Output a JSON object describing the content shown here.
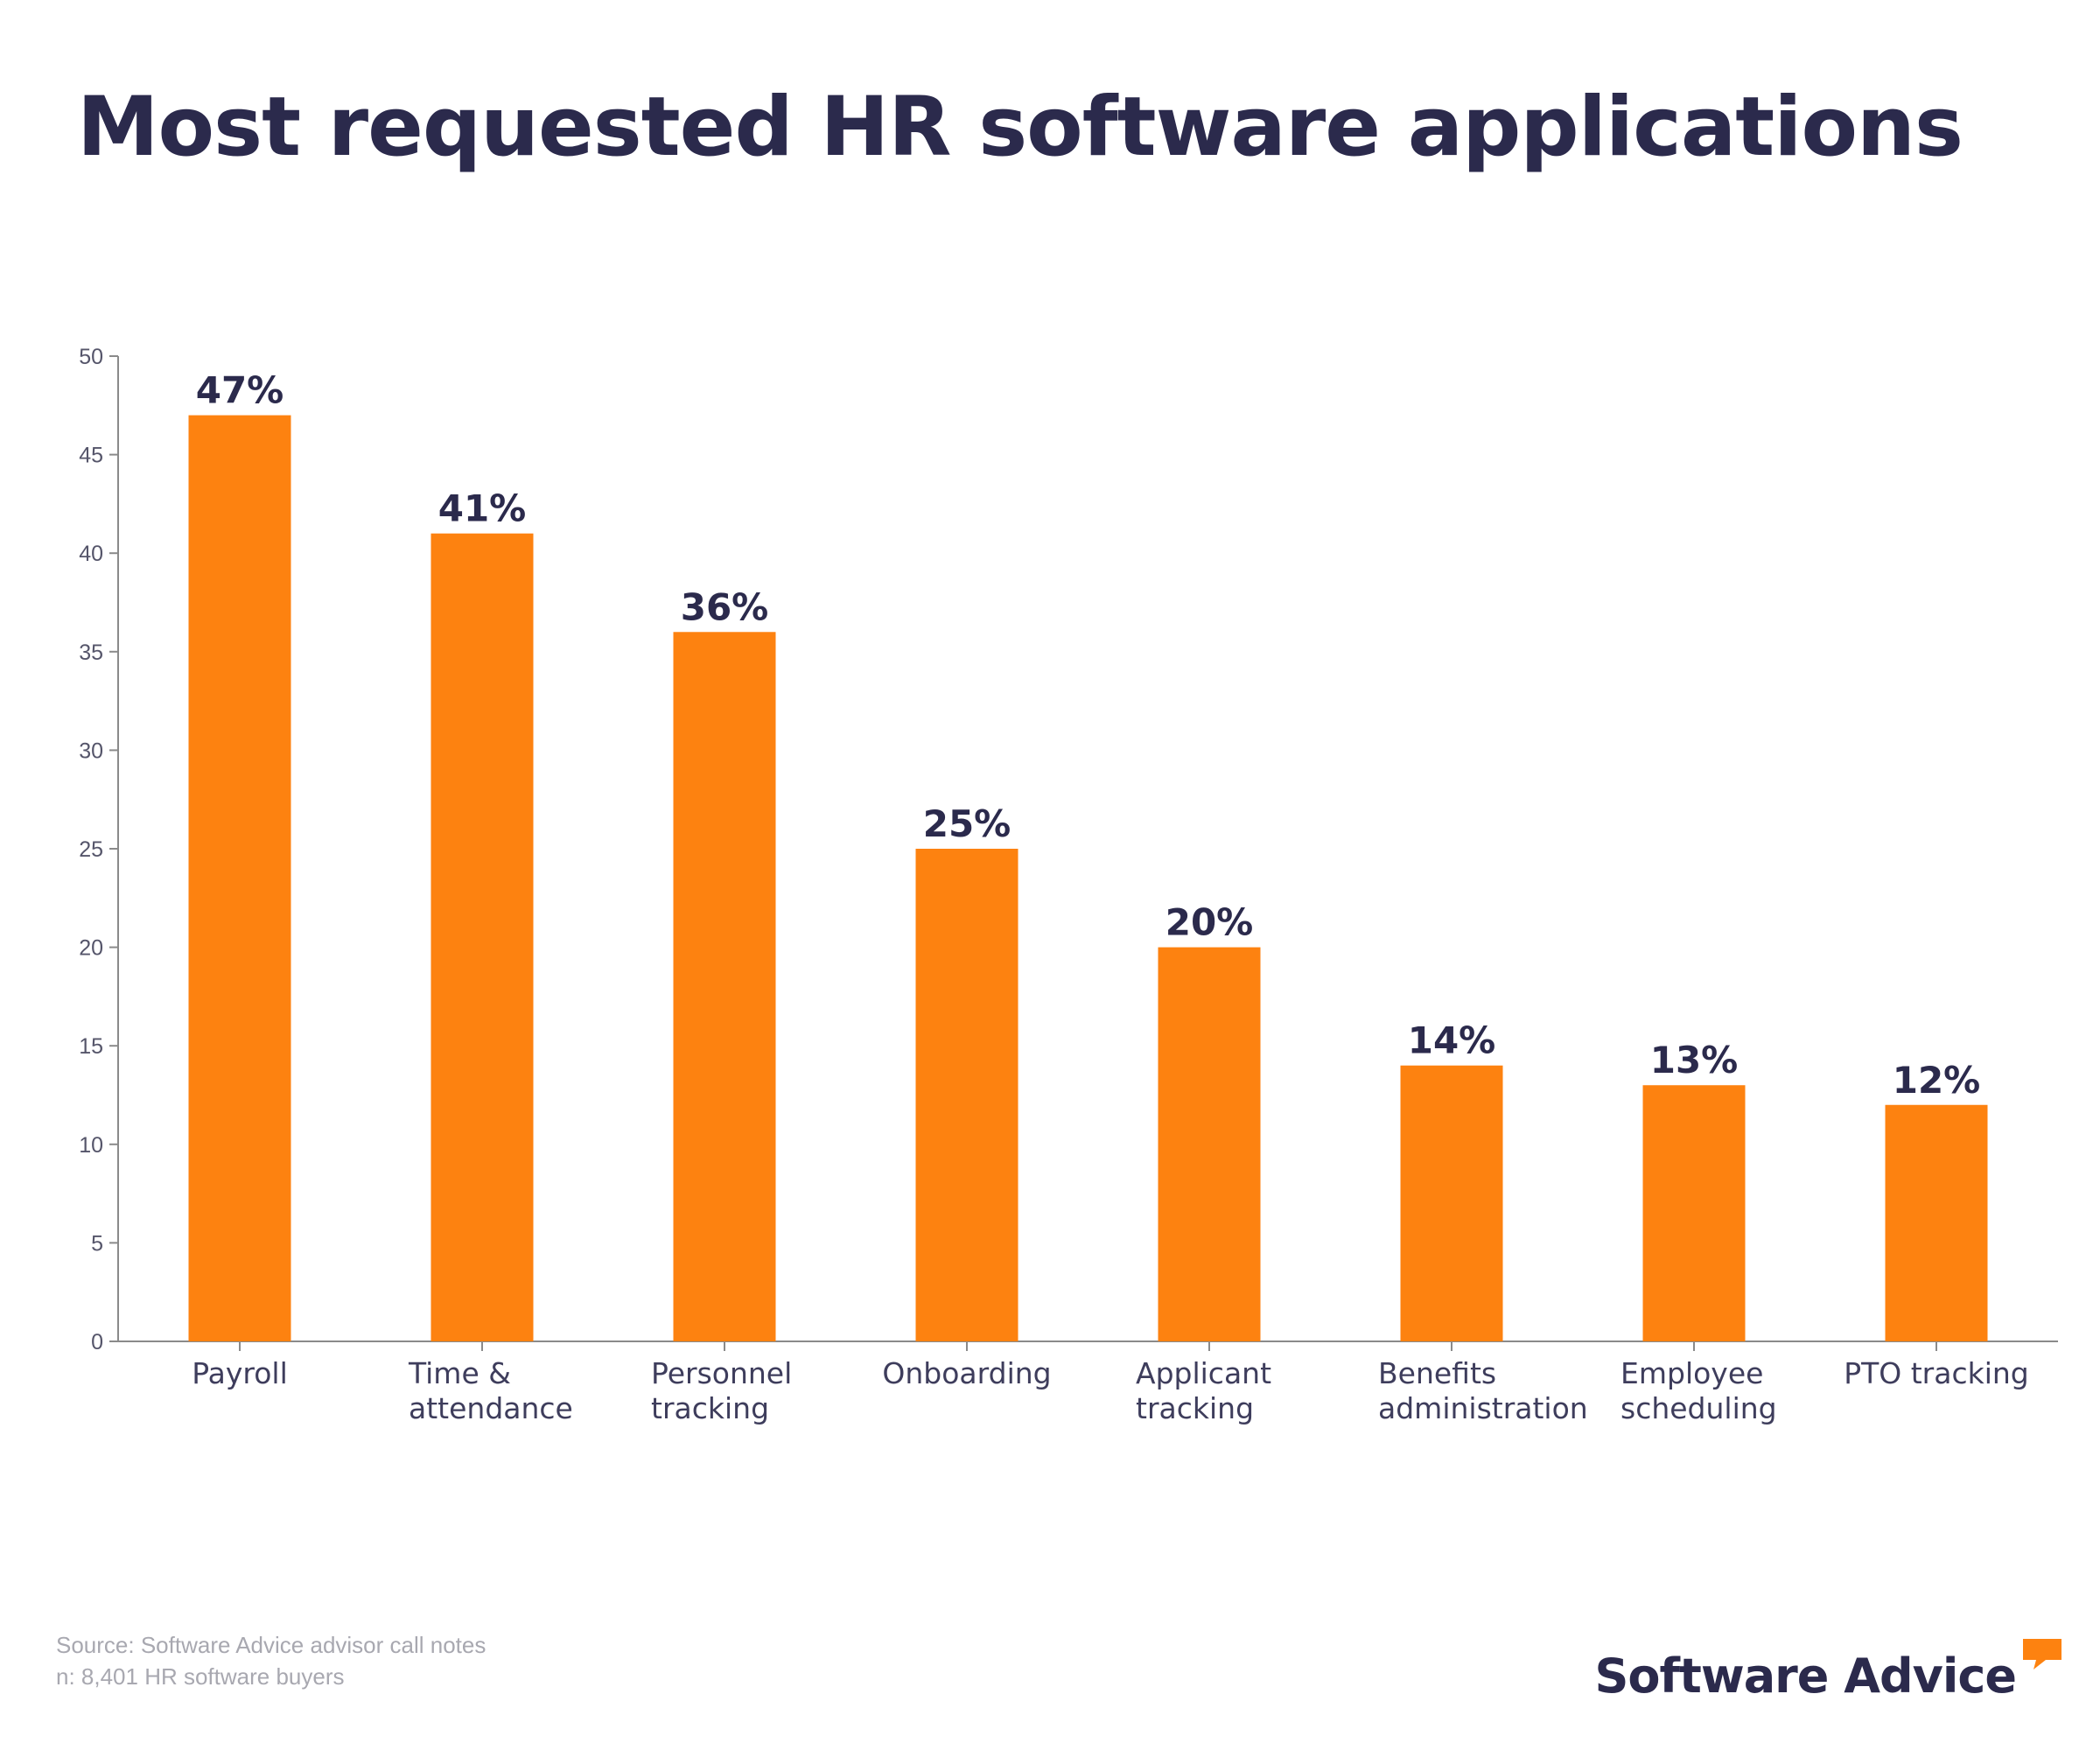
{
  "title": "Most requested HR software applications",
  "colors": {
    "bar": "#fd8210",
    "title": "#2b2a4c",
    "axis": "#8a8a8a",
    "tick_text": "#55556a",
    "category_text": "#3e3d5c",
    "value_text": "#2b2a4c",
    "footnote": "#a8a8b0",
    "brand": "#2b2a4c",
    "brand_accent": "#fd8210"
  },
  "chart_data": {
    "type": "bar",
    "categories": [
      "Payroll",
      "Time & attendance",
      "Personnel tracking",
      "Onboarding",
      "Applicant tracking",
      "Benefits administration",
      "Employee scheduling",
      "PTO tracking"
    ],
    "category_lines": [
      [
        "Payroll"
      ],
      [
        "Time &",
        "attendance"
      ],
      [
        "Personnel",
        "tracking"
      ],
      [
        "Onboarding"
      ],
      [
        "Applicant",
        "tracking"
      ],
      [
        "Benefits",
        "administration"
      ],
      [
        "Employee",
        "scheduling"
      ],
      [
        "PTO tracking"
      ]
    ],
    "values": [
      47,
      41,
      36,
      25,
      20,
      14,
      13,
      12
    ],
    "data_labels": [
      "47%",
      "41%",
      "36%",
      "25%",
      "20%",
      "14%",
      "13%",
      "12%"
    ],
    "ylim": [
      0,
      50
    ],
    "yticks": [
      0,
      5,
      10,
      15,
      20,
      25,
      30,
      35,
      40,
      45,
      50
    ],
    "xlabel": "",
    "ylabel": "",
    "grid": false,
    "legend": "none"
  },
  "footnote": {
    "source": "Source: Software Advice advisor call notes",
    "sample": "n: 8,401 HR software buyers"
  },
  "brand": {
    "name": "Software Advice",
    "icon": "speech-bubble-icon"
  }
}
